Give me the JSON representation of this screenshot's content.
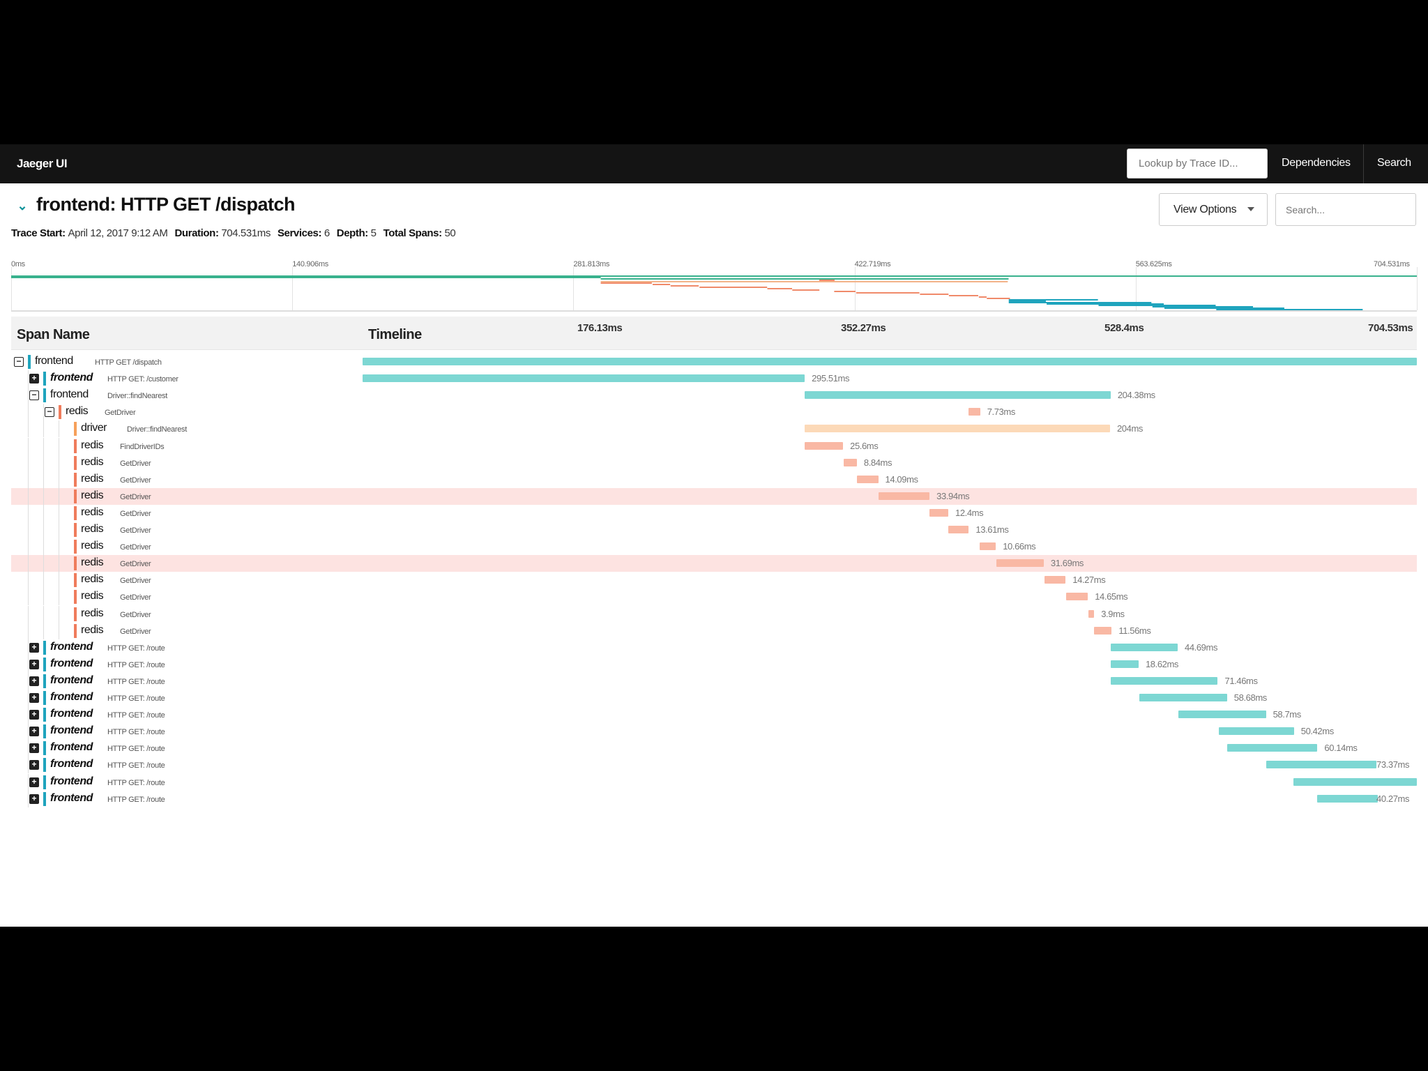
{
  "topbar": {
    "brand": "Jaeger UI",
    "lookup_placeholder": "Lookup by Trace ID...",
    "nav": [
      "Dependencies",
      "Search"
    ]
  },
  "header": {
    "title": "frontend: HTTP GET /dispatch",
    "view_options_label": "View Options",
    "search_placeholder": "Search...",
    "collapse_icon": "chevron-double-down-icon"
  },
  "meta": [
    {
      "label": "Trace Start:",
      "value": "April 12, 2017 9:12 AM"
    },
    {
      "label": "Duration:",
      "value": "704.531ms"
    },
    {
      "label": "Services:",
      "value": "6"
    },
    {
      "label": "Depth:",
      "value": "5"
    },
    {
      "label": "Total Spans:",
      "value": "50"
    }
  ],
  "minimap": {
    "ticks": [
      "0ms",
      "140.906ms",
      "281.813ms",
      "422.719ms",
      "563.625ms",
      "704.531ms"
    ]
  },
  "table": {
    "col_name": "Span Name",
    "col_timeline": "Timeline",
    "ticks": [
      "176.13ms",
      "352.27ms",
      "528.4ms",
      "704.53ms"
    ]
  },
  "colors": {
    "frontend": "#7dd7d3",
    "frontend_minimap": "#1fa4bd",
    "driver": "#fcd9b8",
    "redis": "#f9b8a4",
    "highlight": "#fde3e1"
  },
  "spans": [
    {
      "service": "frontend",
      "op": "HTTP GET /dispatch",
      "level": 0,
      "toggle": "collapse",
      "start_ms": 0,
      "dur_ms": 704.531,
      "label": "",
      "italic": false,
      "hl": false
    },
    {
      "service": "frontend",
      "op": "HTTP GET: /customer",
      "level": 1,
      "toggle": "expand",
      "start_ms": 0,
      "dur_ms": 295.5,
      "label": "295.51ms",
      "italic": true,
      "hl": false
    },
    {
      "service": "frontend",
      "op": "Driver::findNearest",
      "level": 1,
      "toggle": "collapse",
      "start_ms": 295.5,
      "dur_ms": 204.4,
      "label": "204.38ms",
      "italic": false,
      "hl": false
    },
    {
      "service": "redis",
      "op": "GetDriver",
      "level": 2,
      "toggle": "collapse",
      "start_ms": 405,
      "dur_ms": 7.7,
      "label": "7.73ms",
      "italic": false,
      "hl": false
    },
    {
      "service": "driver",
      "op": "Driver::findNearest",
      "level": 3,
      "toggle": "",
      "start_ms": 295.5,
      "dur_ms": 204,
      "label": "204ms",
      "italic": false,
      "hl": false
    },
    {
      "service": "redis",
      "op": "FindDriverIDs",
      "level": 3,
      "toggle": "",
      "start_ms": 295.5,
      "dur_ms": 25.6,
      "label": "25.6ms",
      "italic": false,
      "hl": false
    },
    {
      "service": "redis",
      "op": "GetDriver",
      "level": 3,
      "toggle": "",
      "start_ms": 321.5,
      "dur_ms": 8.8,
      "label": "8.84ms",
      "italic": false,
      "hl": false
    },
    {
      "service": "redis",
      "op": "GetDriver",
      "level": 3,
      "toggle": "",
      "start_ms": 330.5,
      "dur_ms": 14.1,
      "label": "14.09ms",
      "italic": false,
      "hl": false
    },
    {
      "service": "redis",
      "op": "GetDriver",
      "level": 3,
      "toggle": "",
      "start_ms": 345,
      "dur_ms": 33.9,
      "label": "33.94ms",
      "italic": false,
      "hl": true
    },
    {
      "service": "redis",
      "op": "GetDriver",
      "level": 3,
      "toggle": "",
      "start_ms": 379,
      "dur_ms": 12.4,
      "label": "12.4ms",
      "italic": false,
      "hl": false
    },
    {
      "service": "redis",
      "op": "GetDriver",
      "level": 3,
      "toggle": "",
      "start_ms": 391.5,
      "dur_ms": 13.6,
      "label": "13.61ms",
      "italic": false,
      "hl": false
    },
    {
      "service": "redis",
      "op": "GetDriver",
      "level": 3,
      "toggle": "",
      "start_ms": 412.5,
      "dur_ms": 10.7,
      "label": "10.66ms",
      "italic": false,
      "hl": false
    },
    {
      "service": "redis",
      "op": "GetDriver",
      "level": 3,
      "toggle": "",
      "start_ms": 423.5,
      "dur_ms": 31.7,
      "label": "31.69ms",
      "italic": false,
      "hl": true
    },
    {
      "service": "redis",
      "op": "GetDriver",
      "level": 3,
      "toggle": "",
      "start_ms": 455.5,
      "dur_ms": 14.3,
      "label": "14.27ms",
      "italic": false,
      "hl": false
    },
    {
      "service": "redis",
      "op": "GetDriver",
      "level": 3,
      "toggle": "",
      "start_ms": 470,
      "dur_ms": 14.7,
      "label": "14.65ms",
      "italic": false,
      "hl": false
    },
    {
      "service": "redis",
      "op": "GetDriver",
      "level": 3,
      "toggle": "",
      "start_ms": 485,
      "dur_ms": 3.9,
      "label": "3.9ms",
      "italic": false,
      "hl": false
    },
    {
      "service": "redis",
      "op": "GetDriver",
      "level": 3,
      "toggle": "",
      "start_ms": 489,
      "dur_ms": 11.6,
      "label": "11.56ms",
      "italic": false,
      "hl": false
    },
    {
      "service": "frontend",
      "op": "HTTP GET: /route",
      "level": 1,
      "toggle": "expand",
      "start_ms": 500,
      "dur_ms": 44.7,
      "label": "44.69ms",
      "italic": true,
      "hl": false
    },
    {
      "service": "frontend",
      "op": "HTTP GET: /route",
      "level": 1,
      "toggle": "expand",
      "start_ms": 500,
      "dur_ms": 18.6,
      "label": "18.62ms",
      "italic": true,
      "hl": false
    },
    {
      "service": "frontend",
      "op": "HTTP GET: /route",
      "level": 1,
      "toggle": "expand",
      "start_ms": 500,
      "dur_ms": 71.5,
      "label": "71.46ms",
      "italic": true,
      "hl": false
    },
    {
      "service": "frontend",
      "op": "HTTP GET: /route",
      "level": 1,
      "toggle": "expand",
      "start_ms": 519,
      "dur_ms": 58.7,
      "label": "58.68ms",
      "italic": true,
      "hl": false
    },
    {
      "service": "frontend",
      "op": "HTTP GET: /route",
      "level": 1,
      "toggle": "expand",
      "start_ms": 545,
      "dur_ms": 58.7,
      "label": "58.7ms",
      "italic": true,
      "hl": false
    },
    {
      "service": "frontend",
      "op": "HTTP GET: /route",
      "level": 1,
      "toggle": "expand",
      "start_ms": 572,
      "dur_ms": 50.4,
      "label": "50.42ms",
      "italic": true,
      "hl": false
    },
    {
      "service": "frontend",
      "op": "HTTP GET: /route",
      "level": 1,
      "toggle": "expand",
      "start_ms": 578,
      "dur_ms": 60.1,
      "label": "60.14ms",
      "italic": true,
      "hl": false
    },
    {
      "service": "frontend",
      "op": "HTTP GET: /route",
      "level": 1,
      "toggle": "expand",
      "start_ms": 604,
      "dur_ms": 73.4,
      "label": "73.37ms",
      "italic": true,
      "hl": false
    },
    {
      "service": "frontend",
      "op": "HTTP GET: /route",
      "level": 1,
      "toggle": "expand",
      "start_ms": 622,
      "dur_ms": 82.5,
      "label": "",
      "italic": true,
      "hl": false
    },
    {
      "service": "frontend",
      "op": "HTTP GET: /route",
      "level": 1,
      "toggle": "expand",
      "start_ms": 638,
      "dur_ms": 40.3,
      "label": "40.27ms",
      "italic": true,
      "hl": false
    }
  ]
}
